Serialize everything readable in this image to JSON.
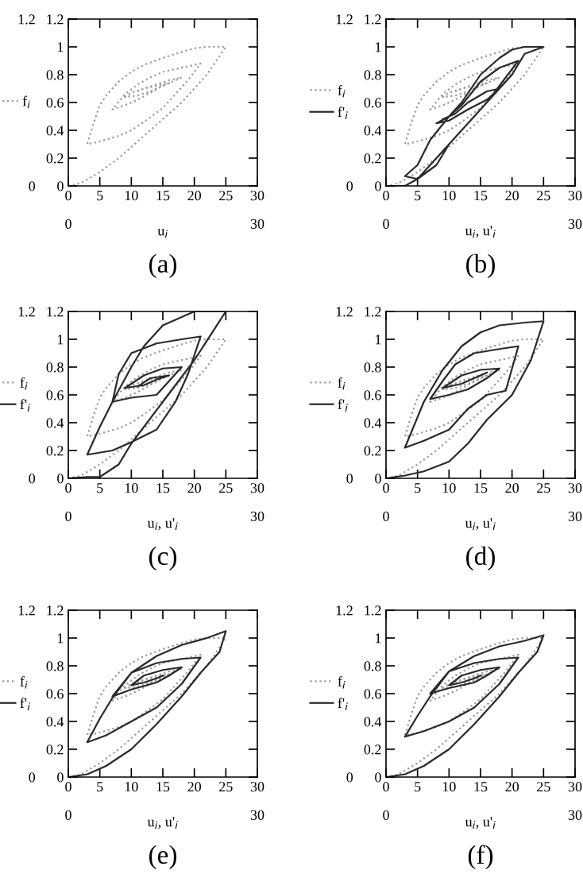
{
  "chart_data": [
    {
      "type": "line",
      "title": "(a)",
      "xlabel": "u$_{i}$",
      "xlim": [
        0,
        30
      ],
      "xticks": [
        0,
        5,
        10,
        15,
        20,
        25,
        30
      ],
      "ylim": [
        0,
        1.2
      ],
      "yticks": [
        0,
        0.2,
        0.4,
        0.6,
        0.8,
        1,
        1.2
      ],
      "y2lim": [
        0,
        1.2
      ],
      "y2ticks": [
        0,
        1.2
      ],
      "x2lim": [
        0,
        30
      ],
      "x2ticks": [
        0,
        30
      ],
      "legend": "left",
      "grid": false,
      "marker": "none",
      "series": [
        {
          "name": "f$_{i}$",
          "color": "#9a9a9a",
          "line_style": "dotted",
          "x": [
            0,
            2,
            5,
            8,
            10,
            13,
            15,
            18,
            20,
            22,
            25,
            22,
            20,
            17,
            15,
            12,
            10,
            8,
            6,
            5,
            4,
            3,
            5,
            8,
            10,
            12,
            15,
            17,
            19,
            21,
            19,
            17,
            15,
            13,
            11,
            9,
            7,
            9,
            11,
            13,
            15,
            17,
            18,
            16,
            14,
            12,
            10,
            9,
            11,
            13,
            15,
            16,
            14,
            12,
            11
          ],
          "values": [
            0,
            0.02,
            0.1,
            0.2,
            0.28,
            0.4,
            0.48,
            0.6,
            0.7,
            0.8,
            1.0,
            1.0,
            0.99,
            0.95,
            0.92,
            0.87,
            0.82,
            0.75,
            0.65,
            0.58,
            0.45,
            0.3,
            0.32,
            0.36,
            0.4,
            0.46,
            0.56,
            0.66,
            0.76,
            0.88,
            0.86,
            0.84,
            0.82,
            0.78,
            0.73,
            0.66,
            0.55,
            0.58,
            0.62,
            0.67,
            0.72,
            0.76,
            0.78,
            0.76,
            0.73,
            0.7,
            0.67,
            0.64,
            0.65,
            0.68,
            0.72,
            0.74,
            0.72,
            0.7,
            0.68
          ]
        }
      ]
    },
    {
      "type": "line",
      "title": "(b)",
      "xlabel": "u$_{i}$, u'$_{i}$",
      "xlim": [
        0,
        30
      ],
      "xticks": [
        0,
        5,
        10,
        15,
        20,
        25,
        30
      ],
      "ylim": [
        0,
        1.2
      ],
      "yticks": [
        0,
        0.2,
        0.4,
        0.6,
        0.8,
        1,
        1.2
      ],
      "y2lim": [
        0,
        1.2
      ],
      "y2ticks": [
        0,
        1.2
      ],
      "x2lim": [
        0,
        30
      ],
      "x2ticks": [
        0,
        30
      ],
      "legend": "left",
      "grid": false,
      "marker": "none",
      "series": [
        {
          "name": "f$_{i}$",
          "color": "#9a9a9a",
          "line_style": "dotted",
          "x": [
            0,
            2,
            5,
            8,
            10,
            13,
            15,
            18,
            20,
            22,
            25,
            22,
            20,
            17,
            15,
            12,
            10,
            8,
            6,
            5,
            4,
            3,
            5,
            8,
            10,
            12,
            15,
            17,
            19,
            21,
            19,
            17,
            15,
            13,
            11,
            9,
            7,
            9,
            11,
            13,
            15,
            17,
            18,
            16,
            14,
            12,
            10,
            9,
            11,
            13,
            15,
            16,
            14,
            12,
            11
          ],
          "values": [
            0,
            0.02,
            0.1,
            0.2,
            0.28,
            0.4,
            0.48,
            0.6,
            0.7,
            0.8,
            1.0,
            1.0,
            0.99,
            0.95,
            0.92,
            0.87,
            0.82,
            0.75,
            0.65,
            0.58,
            0.45,
            0.3,
            0.32,
            0.36,
            0.4,
            0.46,
            0.56,
            0.66,
            0.76,
            0.88,
            0.86,
            0.84,
            0.82,
            0.78,
            0.73,
            0.66,
            0.55,
            0.58,
            0.62,
            0.67,
            0.72,
            0.76,
            0.78,
            0.76,
            0.73,
            0.7,
            0.67,
            0.64,
            0.65,
            0.68,
            0.72,
            0.74,
            0.72,
            0.7,
            0.68
          ]
        },
        {
          "name": "f'$_{i}$",
          "color": "#2a2a2a",
          "line_style": "solid",
          "x": [
            0,
            3,
            5,
            8,
            10,
            13,
            16,
            18,
            20,
            22,
            25,
            22,
            20,
            18,
            15,
            12,
            10,
            7,
            5,
            3,
            5,
            8,
            10,
            13,
            16,
            18,
            21,
            18,
            15,
            12,
            10,
            8,
            10,
            13,
            16,
            18,
            16,
            13,
            11,
            9
          ],
          "values": [
            0,
            0,
            0.05,
            0.2,
            0.3,
            0.45,
            0.6,
            0.7,
            0.8,
            0.95,
            1.0,
            1.0,
            0.98,
            0.92,
            0.8,
            0.6,
            0.5,
            0.33,
            0.15,
            0.07,
            0.05,
            0.15,
            0.3,
            0.45,
            0.6,
            0.72,
            0.9,
            0.85,
            0.75,
            0.58,
            0.5,
            0.45,
            0.47,
            0.55,
            0.62,
            0.7,
            0.68,
            0.6,
            0.52,
            0.48
          ]
        }
      ]
    },
    {
      "type": "line",
      "title": "(c)",
      "xlabel": "u$_{i}$, u'$_{i}$",
      "xlim": [
        0,
        30
      ],
      "xticks": [
        0,
        5,
        10,
        15,
        20,
        25,
        30
      ],
      "ylim": [
        0,
        1.2
      ],
      "yticks": [
        0,
        0.2,
        0.4,
        0.6,
        0.8,
        1,
        1.2
      ],
      "y2lim": [
        0,
        1.2
      ],
      "y2ticks": [
        0,
        1.2
      ],
      "x2lim": [
        0,
        30
      ],
      "x2ticks": [
        0,
        30
      ],
      "legend": "left",
      "grid": false,
      "marker": "none",
      "series": [
        {
          "name": "f$_{i}$",
          "color": "#9a9a9a",
          "line_style": "dotted",
          "x": [
            0,
            2,
            5,
            8,
            10,
            13,
            15,
            18,
            20,
            22,
            25,
            22,
            20,
            17,
            15,
            12,
            10,
            8,
            6,
            5,
            4,
            3,
            5,
            8,
            10,
            12,
            15,
            17,
            19,
            21,
            19,
            17,
            15,
            13,
            11,
            9,
            7,
            9,
            11,
            13,
            15,
            17,
            18,
            16,
            14,
            12,
            10,
            9,
            11,
            13,
            15,
            16,
            14,
            12,
            11
          ],
          "values": [
            0,
            0.02,
            0.1,
            0.2,
            0.28,
            0.4,
            0.48,
            0.6,
            0.7,
            0.8,
            1.0,
            1.0,
            0.99,
            0.95,
            0.92,
            0.87,
            0.82,
            0.75,
            0.65,
            0.58,
            0.45,
            0.3,
            0.32,
            0.36,
            0.4,
            0.46,
            0.56,
            0.66,
            0.76,
            0.88,
            0.86,
            0.84,
            0.82,
            0.78,
            0.73,
            0.66,
            0.55,
            0.58,
            0.62,
            0.67,
            0.72,
            0.76,
            0.78,
            0.76,
            0.73,
            0.7,
            0.67,
            0.64,
            0.65,
            0.68,
            0.72,
            0.74,
            0.72,
            0.7,
            0.68
          ]
        },
        {
          "name": "f'$_{i}$",
          "color": "#2a2a2a",
          "line_style": "solid",
          "x": [
            0,
            3,
            5,
            8,
            10,
            15,
            20,
            25,
            20,
            15,
            12,
            10,
            7,
            5,
            3,
            7,
            10,
            14,
            17,
            19,
            21,
            18,
            14,
            10,
            8,
            7,
            10,
            14,
            16,
            18,
            15,
            12,
            9,
            12,
            14,
            16,
            13,
            11
          ],
          "values": [
            0,
            0.01,
            0.01,
            0.1,
            0.25,
            0.55,
            0.85,
            1.2,
            1.2,
            1.1,
            0.95,
            0.8,
            0.55,
            0.37,
            0.17,
            0.2,
            0.26,
            0.35,
            0.55,
            0.75,
            1.02,
            1.0,
            0.97,
            0.9,
            0.75,
            0.55,
            0.58,
            0.6,
            0.7,
            0.8,
            0.79,
            0.74,
            0.65,
            0.67,
            0.71,
            0.74,
            0.72,
            0.66
          ]
        }
      ]
    },
    {
      "type": "line",
      "title": "(d)",
      "xlabel": "u$_{i}$, u'$_{i}$",
      "xlim": [
        0,
        30
      ],
      "xticks": [
        0,
        5,
        10,
        15,
        20,
        25,
        30
      ],
      "ylim": [
        0,
        1.2
      ],
      "yticks": [
        0,
        0.2,
        0.4,
        0.6,
        0.8,
        1,
        1.2
      ],
      "y2lim": [
        0,
        1.2
      ],
      "y2ticks": [
        0,
        1.2
      ],
      "x2lim": [
        0,
        30
      ],
      "x2ticks": [
        0,
        30
      ],
      "legend": "left",
      "grid": false,
      "marker": "none",
      "series": [
        {
          "name": "f$_{i}$",
          "color": "#9a9a9a",
          "line_style": "dotted",
          "x": [
            0,
            2,
            5,
            8,
            10,
            13,
            15,
            18,
            20,
            22,
            25,
            22,
            20,
            17,
            15,
            12,
            10,
            8,
            6,
            5,
            4,
            3,
            5,
            8,
            10,
            12,
            15,
            17,
            19,
            21,
            19,
            17,
            15,
            13,
            11,
            9,
            7,
            9,
            11,
            13,
            15,
            17,
            18,
            16,
            14,
            12,
            10,
            9,
            11,
            13,
            15,
            16,
            14,
            12,
            11
          ],
          "values": [
            0,
            0.02,
            0.1,
            0.2,
            0.28,
            0.4,
            0.48,
            0.6,
            0.7,
            0.8,
            1.0,
            1.0,
            0.99,
            0.95,
            0.92,
            0.87,
            0.82,
            0.75,
            0.65,
            0.58,
            0.45,
            0.3,
            0.32,
            0.36,
            0.4,
            0.46,
            0.56,
            0.66,
            0.76,
            0.88,
            0.86,
            0.84,
            0.82,
            0.78,
            0.73,
            0.66,
            0.55,
            0.58,
            0.62,
            0.67,
            0.72,
            0.76,
            0.78,
            0.76,
            0.73,
            0.7,
            0.67,
            0.64,
            0.65,
            0.68,
            0.72,
            0.74,
            0.72,
            0.7,
            0.68
          ]
        },
        {
          "name": "f'$_{i}$",
          "color": "#2a2a2a",
          "line_style": "solid",
          "x": [
            0,
            3,
            6,
            10,
            13,
            16,
            20,
            23,
            25,
            22,
            18,
            15,
            12,
            9,
            6,
            3,
            6,
            10,
            13,
            16,
            19,
            21,
            18,
            14,
            11,
            9,
            7,
            10,
            13,
            16,
            18,
            15,
            12,
            10,
            9,
            12,
            14,
            16
          ],
          "values": [
            0,
            0.02,
            0.05,
            0.12,
            0.25,
            0.42,
            0.6,
            0.85,
            1.13,
            1.12,
            1.1,
            1.05,
            0.95,
            0.78,
            0.55,
            0.22,
            0.27,
            0.35,
            0.5,
            0.6,
            0.63,
            0.95,
            0.93,
            0.9,
            0.82,
            0.7,
            0.57,
            0.6,
            0.64,
            0.72,
            0.79,
            0.78,
            0.74,
            0.68,
            0.65,
            0.68,
            0.72,
            0.76
          ]
        }
      ]
    },
    {
      "type": "line",
      "title": "(e)",
      "xlabel": "u$_{i}$, u'$_{i}$",
      "xlim": [
        0,
        30
      ],
      "xticks": [
        0,
        5,
        10,
        15,
        20,
        25,
        30
      ],
      "ylim": [
        0,
        1.2
      ],
      "yticks": [
        0,
        0.2,
        0.4,
        0.6,
        0.8,
        1,
        1.2
      ],
      "y2lim": [
        0,
        1.2
      ],
      "y2ticks": [
        0,
        1.2
      ],
      "x2lim": [
        0,
        30
      ],
      "x2ticks": [
        0,
        30
      ],
      "legend": "left",
      "grid": false,
      "marker": "none",
      "series": [
        {
          "name": "f$_{i}$",
          "color": "#9a9a9a",
          "line_style": "dotted",
          "x": [
            0,
            2,
            5,
            8,
            10,
            13,
            15,
            18,
            20,
            22,
            25,
            22,
            20,
            17,
            15,
            12,
            10,
            8,
            6,
            5,
            4,
            3,
            5,
            8,
            10,
            12,
            15,
            17,
            19,
            21,
            19,
            17,
            15,
            13,
            11,
            9,
            7,
            9,
            11,
            13,
            15,
            17,
            18,
            16,
            14,
            12,
            10,
            9,
            11,
            13,
            15,
            16,
            14,
            12,
            11
          ],
          "values": [
            0,
            0.02,
            0.1,
            0.2,
            0.28,
            0.4,
            0.48,
            0.6,
            0.7,
            0.8,
            1.0,
            1.0,
            0.99,
            0.95,
            0.92,
            0.87,
            0.82,
            0.75,
            0.65,
            0.58,
            0.45,
            0.3,
            0.32,
            0.36,
            0.4,
            0.46,
            0.56,
            0.66,
            0.76,
            0.88,
            0.86,
            0.84,
            0.82,
            0.78,
            0.73,
            0.66,
            0.55,
            0.58,
            0.62,
            0.67,
            0.72,
            0.76,
            0.78,
            0.76,
            0.73,
            0.7,
            0.67,
            0.64,
            0.65,
            0.68,
            0.72,
            0.74,
            0.72,
            0.7,
            0.68
          ]
        },
        {
          "name": "f'$_{i}$",
          "color": "#2a2a2a",
          "line_style": "solid",
          "x": [
            0,
            3,
            6,
            10,
            14,
            18,
            21,
            24,
            25,
            22,
            18,
            14,
            10,
            7,
            5,
            3,
            6,
            10,
            14,
            18,
            21,
            18,
            14,
            10,
            7,
            10,
            14,
            16,
            18,
            15,
            12,
            10,
            12,
            14,
            15
          ],
          "values": [
            0,
            0.02,
            0.08,
            0.2,
            0.38,
            0.58,
            0.75,
            0.9,
            1.05,
            1.0,
            0.95,
            0.87,
            0.75,
            0.57,
            0.42,
            0.25,
            0.3,
            0.4,
            0.5,
            0.67,
            0.86,
            0.85,
            0.82,
            0.75,
            0.58,
            0.63,
            0.68,
            0.73,
            0.79,
            0.77,
            0.73,
            0.66,
            0.68,
            0.71,
            0.73
          ]
        }
      ]
    },
    {
      "type": "line",
      "title": "(f)",
      "xlabel": "u$_{i}$, u'$_{i}$",
      "xlim": [
        0,
        30
      ],
      "xticks": [
        0,
        5,
        10,
        15,
        20,
        25,
        30
      ],
      "ylim": [
        0,
        1.2
      ],
      "yticks": [
        0,
        0.2,
        0.4,
        0.6,
        0.8,
        1,
        1.2
      ],
      "y2lim": [
        0,
        1.2
      ],
      "y2ticks": [
        0,
        1.2
      ],
      "x2lim": [
        0,
        30
      ],
      "x2ticks": [
        0,
        30
      ],
      "legend": "left",
      "grid": false,
      "marker": "none",
      "series": [
        {
          "name": "f$_{i}$",
          "color": "#9a9a9a",
          "line_style": "dotted",
          "x": [
            0,
            2,
            5,
            8,
            10,
            13,
            15,
            18,
            20,
            22,
            25,
            22,
            20,
            17,
            15,
            12,
            10,
            8,
            6,
            5,
            4,
            3,
            5,
            8,
            10,
            12,
            15,
            17,
            19,
            21,
            19,
            17,
            15,
            13,
            11,
            9,
            7,
            9,
            11,
            13,
            15,
            17,
            18,
            16,
            14,
            12,
            10,
            9,
            11,
            13,
            15,
            16,
            14,
            12,
            11
          ],
          "values": [
            0,
            0.02,
            0.1,
            0.2,
            0.28,
            0.4,
            0.48,
            0.6,
            0.7,
            0.8,
            1.0,
            1.0,
            0.99,
            0.95,
            0.92,
            0.87,
            0.82,
            0.75,
            0.65,
            0.58,
            0.45,
            0.3,
            0.32,
            0.36,
            0.4,
            0.46,
            0.56,
            0.66,
            0.76,
            0.88,
            0.86,
            0.84,
            0.82,
            0.78,
            0.73,
            0.66,
            0.55,
            0.58,
            0.62,
            0.67,
            0.72,
            0.76,
            0.78,
            0.76,
            0.73,
            0.7,
            0.67,
            0.64,
            0.65,
            0.68,
            0.72,
            0.74,
            0.72,
            0.7,
            0.68
          ]
        },
        {
          "name": "f'$_{i}$",
          "color": "#2a2a2a",
          "line_style": "solid",
          "x": [
            0,
            3,
            6,
            10,
            14,
            18,
            21,
            24,
            25,
            22,
            18,
            14,
            10,
            7,
            5,
            3,
            6,
            10,
            14,
            18,
            21,
            18,
            14,
            10,
            7,
            10,
            14,
            16,
            18,
            15,
            12,
            10,
            12,
            14,
            15
          ],
          "values": [
            0,
            0.02,
            0.08,
            0.2,
            0.38,
            0.58,
            0.75,
            0.9,
            1.02,
            0.98,
            0.94,
            0.87,
            0.76,
            0.58,
            0.44,
            0.29,
            0.33,
            0.4,
            0.5,
            0.67,
            0.86,
            0.85,
            0.82,
            0.76,
            0.6,
            0.64,
            0.68,
            0.73,
            0.79,
            0.77,
            0.73,
            0.66,
            0.68,
            0.71,
            0.73
          ]
        }
      ]
    }
  ]
}
